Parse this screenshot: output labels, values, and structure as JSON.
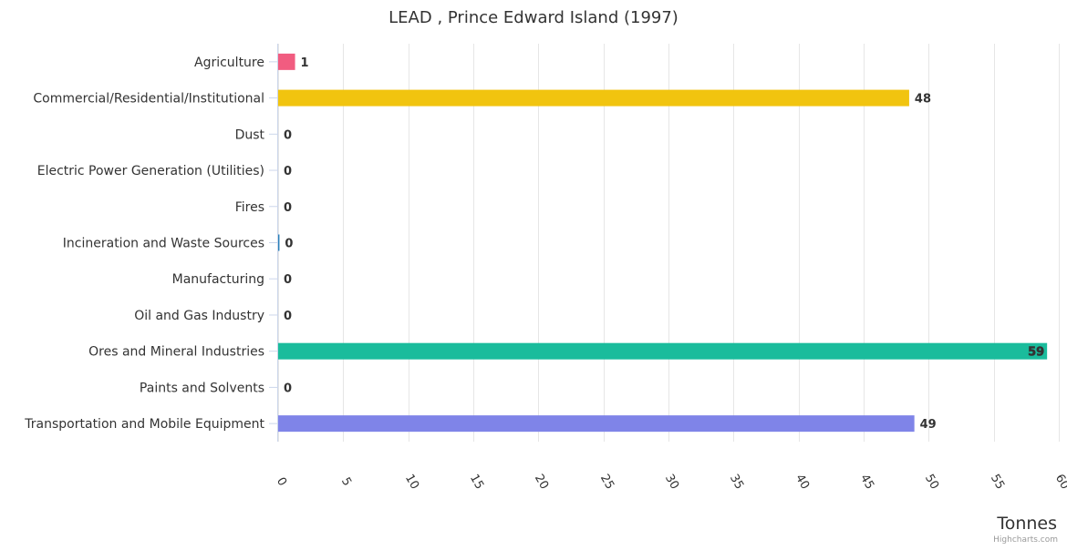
{
  "chart_data": {
    "type": "bar",
    "orientation": "horizontal",
    "title": "LEAD , Prince Edward Island (1997)",
    "xlabel": "",
    "ylabel": "Tonnes",
    "categories": [
      "Agriculture",
      "Commercial/Residential/Institutional",
      "Dust",
      "Electric Power Generation (Utilities)",
      "Fires",
      "Incineration and Waste Sources",
      "Manufacturing",
      "Oil and Gas Industry",
      "Ores and Mineral Industries",
      "Paints and Solvents",
      "Transportation and Mobile Equipment"
    ],
    "values": [
      1.3,
      48.5,
      0,
      0,
      0,
      0.1,
      0,
      0,
      59.1,
      0,
      48.9
    ],
    "data_labels": [
      "1",
      "48",
      "0",
      "0",
      "0",
      "0",
      "0",
      "0",
      "59",
      "0",
      "49"
    ],
    "bar_colors": [
      "#f15c80",
      "#f1c40f",
      "#2b908f",
      "#f45b5b",
      "#91e8e1",
      "#2980b9",
      "#e4d354",
      "#8085e8",
      "#1abc9c",
      "#7cb5ec",
      "#7f84e8"
    ],
    "ylim": [
      0,
      60
    ],
    "ticks": [
      0,
      5,
      10,
      15,
      20,
      25,
      30,
      35,
      40,
      45,
      50,
      55,
      60
    ],
    "tick_labels": [
      "0",
      "5",
      "10",
      "15",
      "20",
      "25",
      "30",
      "35",
      "40",
      "45",
      "50",
      "55",
      "60"
    ],
    "grid": true,
    "legend": "none",
    "credits": "Highcharts.com"
  }
}
